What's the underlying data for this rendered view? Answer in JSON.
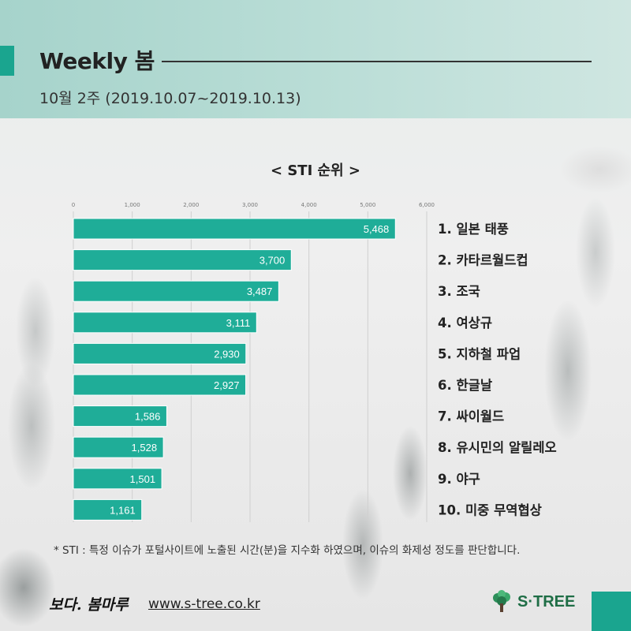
{
  "header": {
    "title": "Weekly 봄",
    "subtitle": "10월 2주 (2019.10.07~2019.10.13)"
  },
  "colors": {
    "bar": "#1fad98",
    "accent": "#1aa58f",
    "header_band": "#b3dad3"
  },
  "chart_data": {
    "type": "bar",
    "orientation": "horizontal",
    "title": "< STI 순위 >",
    "xlim": [
      0,
      6000
    ],
    "x_ticks": [
      "0",
      "1,000",
      "2,000",
      "3,000",
      "4,000",
      "5,000",
      "6,000"
    ],
    "grid": true,
    "categories": [
      "1. 일본 태풍",
      "2. 카타르월드컵",
      "3. 조국",
      "4. 여상규",
      "5. 지하철 파업",
      "6. 한글날",
      "7. 싸이월드",
      "8. 유시민의 알릴레오",
      "9. 야구",
      "10. 미중 무역협상"
    ],
    "values": [
      5468,
      3700,
      3487,
      3111,
      2930,
      2927,
      1586,
      1528,
      1501,
      1161
    ],
    "value_labels": [
      "5,468",
      "3,700",
      "3,487",
      "3,111",
      "2,930",
      "2,927",
      "1,586",
      "1,528",
      "1,501",
      "1,161"
    ]
  },
  "footnote": "* STI : 특정 이슈가 포털사이트에 노출된 시간(분)을 지수화 하였으며, 이슈의 화제성 정도를 판단합니다.",
  "footer": {
    "brand": "보다. 봄마루",
    "url": "www.s-tree.co.kr",
    "logo_text": "S·TREE",
    "logo_icon": "tree-icon"
  }
}
